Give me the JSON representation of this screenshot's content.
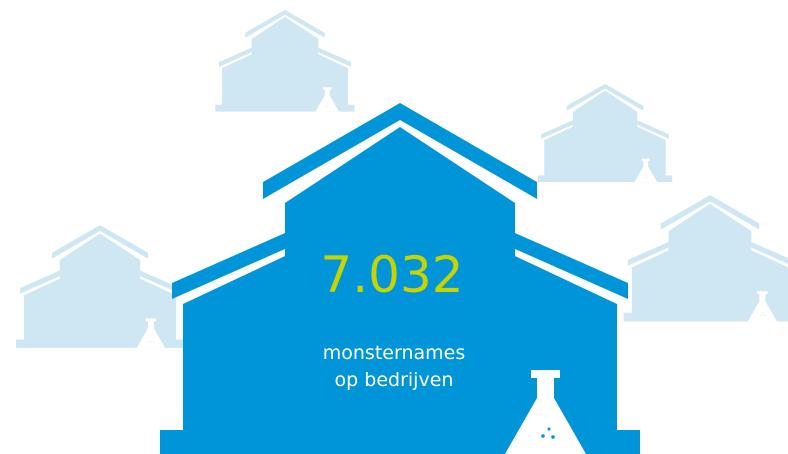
{
  "stat": {
    "value": "7.032",
    "label_lines": [
      "monsternames",
      "op bedrijven"
    ]
  }
}
